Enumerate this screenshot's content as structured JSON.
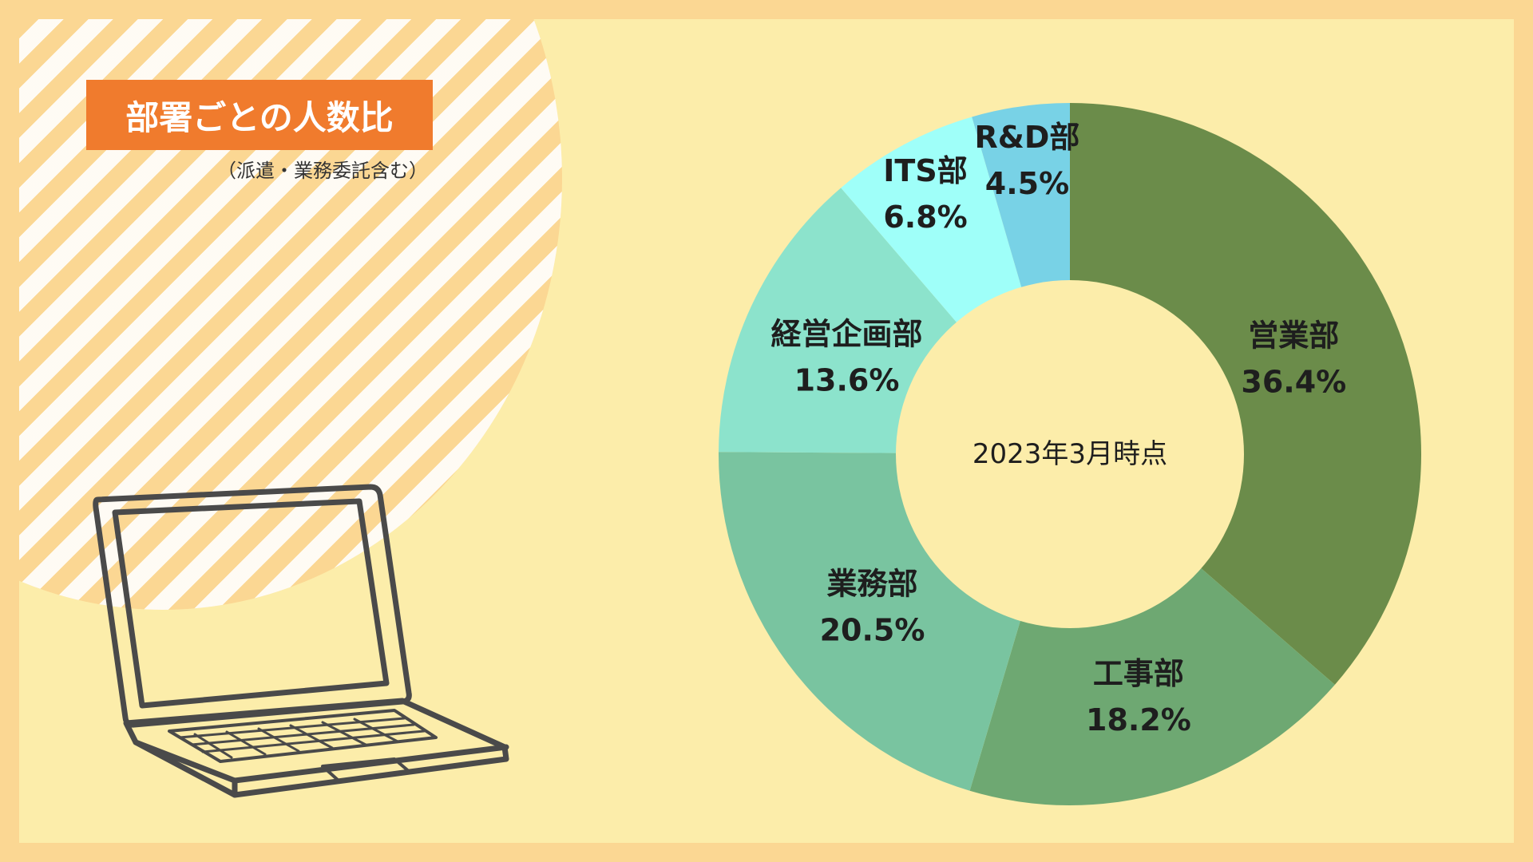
{
  "title": "部署ごとの人数比",
  "subtitle": "（派遣・業務委託含む）",
  "chart_data": {
    "type": "pie",
    "center_label": "2023年3月時点",
    "categories": [
      "営業部",
      "工事部",
      "業務部",
      "経営企画部",
      "ITS部",
      "R&D部"
    ],
    "values": [
      36.4,
      18.2,
      20.5,
      13.6,
      6.8,
      4.5
    ],
    "value_labels": [
      "36.4%",
      "18.2%",
      "20.5%",
      "13.6%",
      "6.8%",
      "4.5%"
    ],
    "colors": [
      "#6b8c4a",
      "#6ea872",
      "#79c4a0",
      "#8ce3cc",
      "#9ffff9",
      "#78d2e6"
    ]
  }
}
